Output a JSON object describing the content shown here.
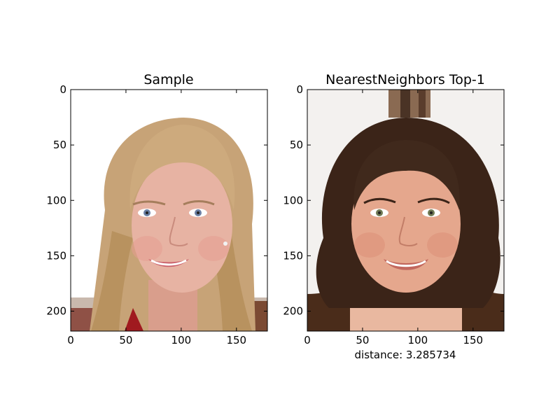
{
  "chart_data": [
    {
      "type": "image",
      "title": "Sample",
      "xlabel": "",
      "ylabel": "",
      "xlim": [
        0,
        178
      ],
      "ylim": [
        218,
        0
      ],
      "xticks": [
        "0",
        "50",
        "100",
        "150"
      ],
      "yticks": [
        "0",
        "50",
        "100",
        "150",
        "200"
      ],
      "colors": {
        "background": "#ffffff",
        "skin": "#e7b3a3",
        "hair": "#c7a377",
        "cheek": "#e59c92",
        "lips": "#c95f6a",
        "iris": "#6a7fa4",
        "shirt": "#a01a1f"
      }
    },
    {
      "type": "image",
      "title": "NearestNeighbors Top-1",
      "xlabel": "distance: 3.285734",
      "ylabel": "",
      "xlim": [
        0,
        178
      ],
      "ylim": [
        218,
        0
      ],
      "xticks": [
        "0",
        "50",
        "100",
        "150"
      ],
      "yticks": [
        "0",
        "50",
        "100",
        "150",
        "200"
      ],
      "colors": {
        "background": "#f3f1ef",
        "skin": "#e5a78d",
        "hair": "#3b2418",
        "cheek": "#dc8f78",
        "lips": "#c2685e",
        "iris": "#707a55",
        "shirt": "#4a2c1a"
      }
    }
  ]
}
